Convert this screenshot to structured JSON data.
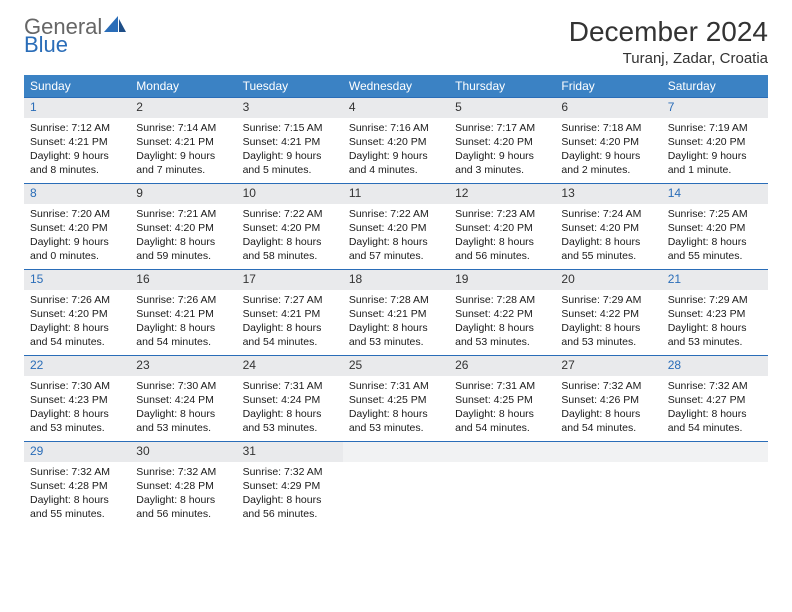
{
  "logo": {
    "text1": "General",
    "text2": "Blue"
  },
  "title": "December 2024",
  "location": "Turanj, Zadar, Croatia",
  "colors": {
    "header_bg": "#3b82c4",
    "header_fg": "#ffffff",
    "rule": "#2a6db8",
    "daynum_bg": "#e9eaec",
    "weekend_fg": "#2a6db8",
    "text": "#1a1a1a",
    "logo_accent": "#2a6db8"
  },
  "weekdays": [
    "Sunday",
    "Monday",
    "Tuesday",
    "Wednesday",
    "Thursday",
    "Friday",
    "Saturday"
  ],
  "weeks": [
    [
      {
        "day": "1",
        "weekend": true,
        "sunrise": "Sunrise: 7:12 AM",
        "sunset": "Sunset: 4:21 PM",
        "daylight": "Daylight: 9 hours and 8 minutes."
      },
      {
        "day": "2",
        "weekend": false,
        "sunrise": "Sunrise: 7:14 AM",
        "sunset": "Sunset: 4:21 PM",
        "daylight": "Daylight: 9 hours and 7 minutes."
      },
      {
        "day": "3",
        "weekend": false,
        "sunrise": "Sunrise: 7:15 AM",
        "sunset": "Sunset: 4:21 PM",
        "daylight": "Daylight: 9 hours and 5 minutes."
      },
      {
        "day": "4",
        "weekend": false,
        "sunrise": "Sunrise: 7:16 AM",
        "sunset": "Sunset: 4:20 PM",
        "daylight": "Daylight: 9 hours and 4 minutes."
      },
      {
        "day": "5",
        "weekend": false,
        "sunrise": "Sunrise: 7:17 AM",
        "sunset": "Sunset: 4:20 PM",
        "daylight": "Daylight: 9 hours and 3 minutes."
      },
      {
        "day": "6",
        "weekend": false,
        "sunrise": "Sunrise: 7:18 AM",
        "sunset": "Sunset: 4:20 PM",
        "daylight": "Daylight: 9 hours and 2 minutes."
      },
      {
        "day": "7",
        "weekend": true,
        "sunrise": "Sunrise: 7:19 AM",
        "sunset": "Sunset: 4:20 PM",
        "daylight": "Daylight: 9 hours and 1 minute."
      }
    ],
    [
      {
        "day": "8",
        "weekend": true,
        "sunrise": "Sunrise: 7:20 AM",
        "sunset": "Sunset: 4:20 PM",
        "daylight": "Daylight: 9 hours and 0 minutes."
      },
      {
        "day": "9",
        "weekend": false,
        "sunrise": "Sunrise: 7:21 AM",
        "sunset": "Sunset: 4:20 PM",
        "daylight": "Daylight: 8 hours and 59 minutes."
      },
      {
        "day": "10",
        "weekend": false,
        "sunrise": "Sunrise: 7:22 AM",
        "sunset": "Sunset: 4:20 PM",
        "daylight": "Daylight: 8 hours and 58 minutes."
      },
      {
        "day": "11",
        "weekend": false,
        "sunrise": "Sunrise: 7:22 AM",
        "sunset": "Sunset: 4:20 PM",
        "daylight": "Daylight: 8 hours and 57 minutes."
      },
      {
        "day": "12",
        "weekend": false,
        "sunrise": "Sunrise: 7:23 AM",
        "sunset": "Sunset: 4:20 PM",
        "daylight": "Daylight: 8 hours and 56 minutes."
      },
      {
        "day": "13",
        "weekend": false,
        "sunrise": "Sunrise: 7:24 AM",
        "sunset": "Sunset: 4:20 PM",
        "daylight": "Daylight: 8 hours and 55 minutes."
      },
      {
        "day": "14",
        "weekend": true,
        "sunrise": "Sunrise: 7:25 AM",
        "sunset": "Sunset: 4:20 PM",
        "daylight": "Daylight: 8 hours and 55 minutes."
      }
    ],
    [
      {
        "day": "15",
        "weekend": true,
        "sunrise": "Sunrise: 7:26 AM",
        "sunset": "Sunset: 4:20 PM",
        "daylight": "Daylight: 8 hours and 54 minutes."
      },
      {
        "day": "16",
        "weekend": false,
        "sunrise": "Sunrise: 7:26 AM",
        "sunset": "Sunset: 4:21 PM",
        "daylight": "Daylight: 8 hours and 54 minutes."
      },
      {
        "day": "17",
        "weekend": false,
        "sunrise": "Sunrise: 7:27 AM",
        "sunset": "Sunset: 4:21 PM",
        "daylight": "Daylight: 8 hours and 54 minutes."
      },
      {
        "day": "18",
        "weekend": false,
        "sunrise": "Sunrise: 7:28 AM",
        "sunset": "Sunset: 4:21 PM",
        "daylight": "Daylight: 8 hours and 53 minutes."
      },
      {
        "day": "19",
        "weekend": false,
        "sunrise": "Sunrise: 7:28 AM",
        "sunset": "Sunset: 4:22 PM",
        "daylight": "Daylight: 8 hours and 53 minutes."
      },
      {
        "day": "20",
        "weekend": false,
        "sunrise": "Sunrise: 7:29 AM",
        "sunset": "Sunset: 4:22 PM",
        "daylight": "Daylight: 8 hours and 53 minutes."
      },
      {
        "day": "21",
        "weekend": true,
        "sunrise": "Sunrise: 7:29 AM",
        "sunset": "Sunset: 4:23 PM",
        "daylight": "Daylight: 8 hours and 53 minutes."
      }
    ],
    [
      {
        "day": "22",
        "weekend": true,
        "sunrise": "Sunrise: 7:30 AM",
        "sunset": "Sunset: 4:23 PM",
        "daylight": "Daylight: 8 hours and 53 minutes."
      },
      {
        "day": "23",
        "weekend": false,
        "sunrise": "Sunrise: 7:30 AM",
        "sunset": "Sunset: 4:24 PM",
        "daylight": "Daylight: 8 hours and 53 minutes."
      },
      {
        "day": "24",
        "weekend": false,
        "sunrise": "Sunrise: 7:31 AM",
        "sunset": "Sunset: 4:24 PM",
        "daylight": "Daylight: 8 hours and 53 minutes."
      },
      {
        "day": "25",
        "weekend": false,
        "sunrise": "Sunrise: 7:31 AM",
        "sunset": "Sunset: 4:25 PM",
        "daylight": "Daylight: 8 hours and 53 minutes."
      },
      {
        "day": "26",
        "weekend": false,
        "sunrise": "Sunrise: 7:31 AM",
        "sunset": "Sunset: 4:25 PM",
        "daylight": "Daylight: 8 hours and 54 minutes."
      },
      {
        "day": "27",
        "weekend": false,
        "sunrise": "Sunrise: 7:32 AM",
        "sunset": "Sunset: 4:26 PM",
        "daylight": "Daylight: 8 hours and 54 minutes."
      },
      {
        "day": "28",
        "weekend": true,
        "sunrise": "Sunrise: 7:32 AM",
        "sunset": "Sunset: 4:27 PM",
        "daylight": "Daylight: 8 hours and 54 minutes."
      }
    ],
    [
      {
        "day": "29",
        "weekend": true,
        "sunrise": "Sunrise: 7:32 AM",
        "sunset": "Sunset: 4:28 PM",
        "daylight": "Daylight: 8 hours and 55 minutes."
      },
      {
        "day": "30",
        "weekend": false,
        "sunrise": "Sunrise: 7:32 AM",
        "sunset": "Sunset: 4:28 PM",
        "daylight": "Daylight: 8 hours and 56 minutes."
      },
      {
        "day": "31",
        "weekend": false,
        "sunrise": "Sunrise: 7:32 AM",
        "sunset": "Sunset: 4:29 PM",
        "daylight": "Daylight: 8 hours and 56 minutes."
      },
      {
        "empty": true
      },
      {
        "empty": true
      },
      {
        "empty": true
      },
      {
        "empty": true
      }
    ]
  ]
}
